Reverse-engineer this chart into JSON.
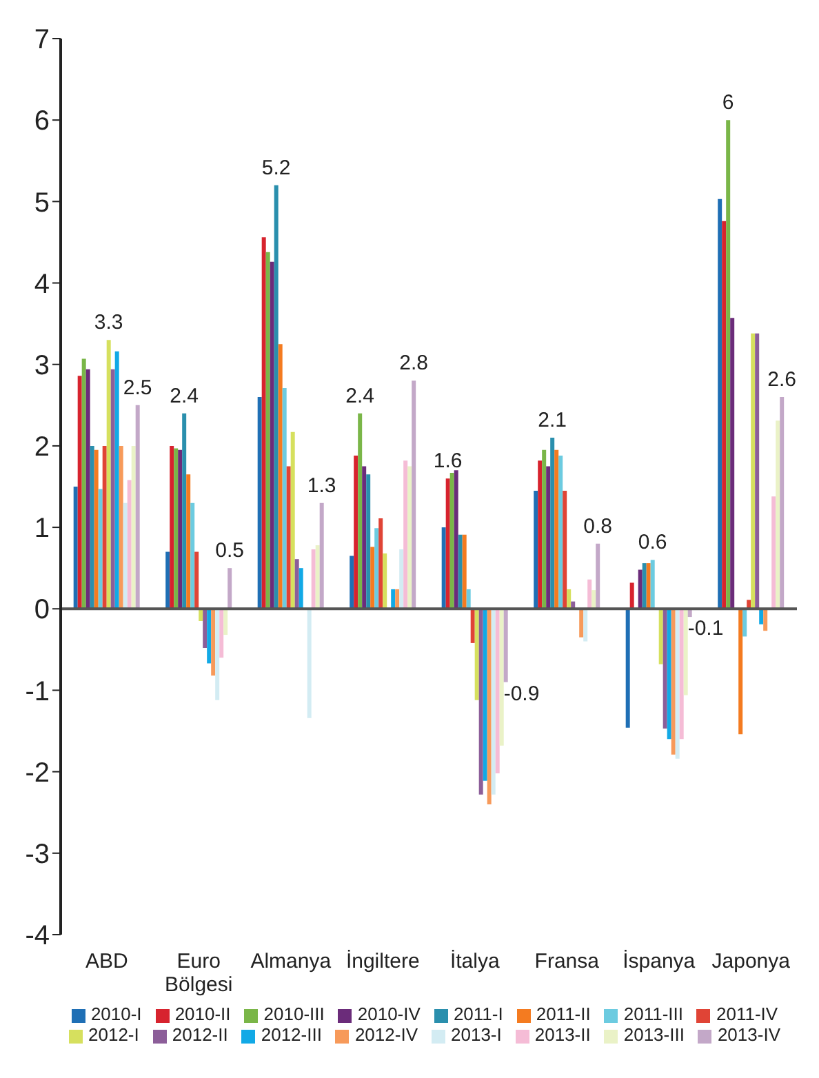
{
  "chart_data": {
    "type": "bar",
    "categories": [
      "ABD",
      "Euro Bölgesi",
      "Almanya",
      "İngiltere",
      "İtalya",
      "Fransa",
      "İspanya",
      "Japonya"
    ],
    "series": [
      {
        "name": "2010-I",
        "color": "#1f6fb5",
        "values": [
          1.5,
          0.7,
          2.6,
          0.65,
          1.0,
          1.45,
          -1.46,
          5.03
        ]
      },
      {
        "name": "2010-II",
        "color": "#d7232e",
        "values": [
          2.86,
          2.0,
          4.56,
          1.88,
          1.6,
          1.82,
          0.32,
          4.76
        ],
        "value_labels": [
          null,
          null,
          null,
          null,
          "1.6",
          null,
          null,
          null
        ]
      },
      {
        "name": "2010-III",
        "color": "#7ab648",
        "values": [
          3.07,
          1.97,
          4.38,
          2.4,
          1.67,
          1.95,
          null,
          6
        ],
        "value_labels": [
          null,
          null,
          null,
          "2.4",
          null,
          null,
          null,
          "6"
        ]
      },
      {
        "name": "2010-IV",
        "color": "#6b2c7a",
        "values": [
          2.94,
          1.95,
          4.26,
          1.75,
          1.7,
          1.75,
          0.48,
          3.57
        ]
      },
      {
        "name": "2011-I",
        "color": "#2a8fad",
        "values": [
          2.0,
          2.4,
          5.2,
          1.65,
          0.91,
          2.1,
          0.56,
          null
        ],
        "value_labels": [
          null,
          "2.4",
          "5.2",
          null,
          null,
          "2.1",
          null,
          null
        ]
      },
      {
        "name": "2011-II",
        "color": "#f47b20",
        "values": [
          1.95,
          1.65,
          3.25,
          0.76,
          0.91,
          1.95,
          0.56,
          -1.54
        ]
      },
      {
        "name": "2011-III",
        "color": "#6ccbe0",
        "values": [
          1.47,
          1.3,
          2.71,
          0.99,
          0.24,
          1.88,
          0.6,
          -0.34
        ],
        "value_labels": [
          null,
          null,
          null,
          null,
          null,
          null,
          "0.6",
          null
        ]
      },
      {
        "name": "2011-IV",
        "color": "#e04436",
        "values": [
          2.0,
          0.7,
          1.75,
          1.11,
          -0.42,
          1.45,
          null,
          0.11
        ]
      },
      {
        "name": "2012-I",
        "color": "#d6e05e",
        "values": [
          3.3,
          -0.15,
          2.17,
          0.68,
          -1.12,
          0.24,
          -0.68,
          3.38
        ],
        "value_labels": [
          "3.3",
          null,
          null,
          null,
          null,
          null,
          null,
          null
        ]
      },
      {
        "name": "2012-II",
        "color": "#8c5e99",
        "values": [
          2.94,
          -0.48,
          0.61,
          null,
          -2.28,
          0.09,
          -1.47,
          3.38
        ]
      },
      {
        "name": "2012-III",
        "color": "#12a9e6",
        "values": [
          3.16,
          -0.67,
          0.5,
          0.24,
          -2.11,
          null,
          -1.6,
          -0.19
        ]
      },
      {
        "name": "2012-IV",
        "color": "#f79a5a",
        "values": [
          2.0,
          -0.82,
          null,
          0.24,
          -2.4,
          -0.35,
          -1.79,
          -0.27
        ]
      },
      {
        "name": "2013-I",
        "color": "#d3ecf3",
        "values": [
          1.3,
          -1.12,
          -1.34,
          0.73,
          -2.28,
          -0.4,
          -1.84,
          null
        ]
      },
      {
        "name": "2013-II",
        "color": "#f5bcd6",
        "values": [
          1.58,
          -0.6,
          0.73,
          1.82,
          -2.02,
          0.36,
          -1.6,
          1.38
        ]
      },
      {
        "name": "2013-III",
        "color": "#eaf2c7",
        "values": [
          2.0,
          -0.32,
          0.78,
          1.75,
          -1.68,
          0.23,
          -1.06,
          2.31
        ]
      },
      {
        "name": "2013-IV",
        "color": "#c3a8c8",
        "values": [
          2.5,
          0.5,
          1.3,
          2.8,
          -0.9,
          0.8,
          -0.1,
          2.6
        ],
        "value_labels": [
          "2.5",
          "0.5",
          "1.3",
          "2.8",
          "-0.9",
          "0.8",
          "-0.1",
          "2.6"
        ]
      }
    ],
    "ylim": [
      -4,
      7
    ],
    "yticks": [
      -4,
      -3,
      -2,
      -1,
      0,
      1,
      2,
      3,
      4,
      5,
      6,
      7
    ],
    "ref_lines": [
      {
        "axis": "y",
        "value": 0,
        "color": "#555555"
      }
    ],
    "grid": false,
    "legend": "bottom"
  }
}
